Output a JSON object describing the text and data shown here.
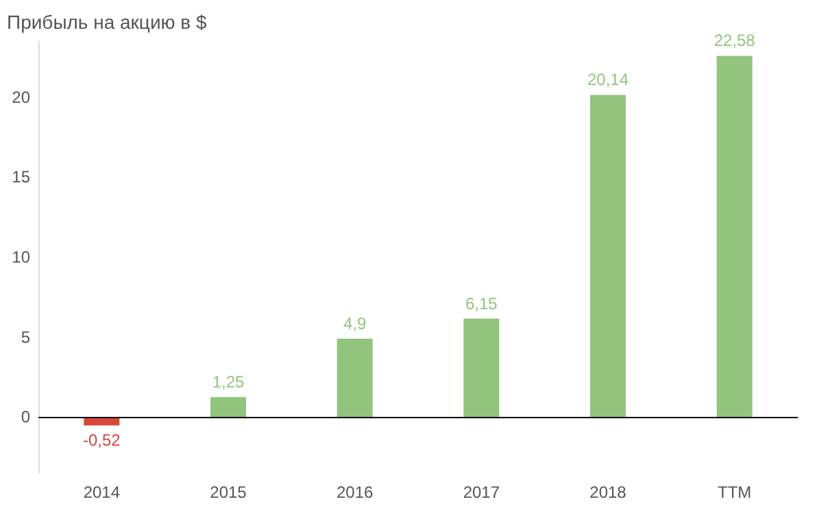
{
  "chart_data": {
    "type": "bar",
    "title": "Прибыль на акцию в $",
    "categories": [
      "2014",
      "2015",
      "2016",
      "2017",
      "2018",
      "TTM"
    ],
    "values": [
      -0.52,
      1.25,
      4.9,
      6.15,
      20.14,
      22.58
    ],
    "colors": [
      "#d9463a",
      "#93c47d",
      "#93c47d",
      "#93c47d",
      "#93c47d",
      "#93c47d"
    ],
    "value_labels": [
      "-0,52",
      "1,25",
      "4,9",
      "6,15",
      "20,14",
      "22,58"
    ],
    "ylim": [
      -3.5,
      23.5
    ],
    "yticks": [
      0,
      5,
      10,
      15,
      20
    ],
    "grid": false,
    "ref_lines": [
      {
        "axis": "y",
        "value": 0,
        "color": "#000000"
      }
    ]
  }
}
